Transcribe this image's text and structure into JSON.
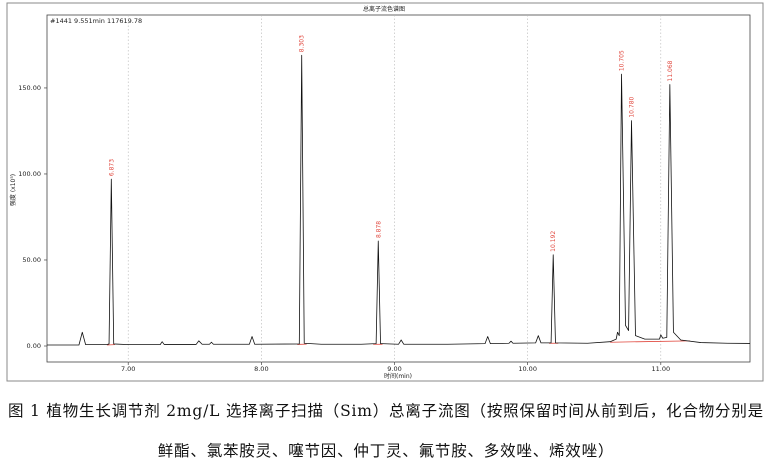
{
  "figure": {
    "title": "总离子流色谱图",
    "info": "#1441 9.551min 117619.78",
    "caption_line1": "图 1 植物生长调节剂 2mg/L 选择离子扫描（Sim）总离子流图（按照保留时间从前到后，化合物分别是胺",
    "caption_line2": "鲜酯、氯苯胺灵、噻节因、仲丁灵、氟节胺、多效唑、烯效唑）"
  },
  "chart_data": {
    "type": "line",
    "title": "总离子流色谱图",
    "xlabel": "时间(min)",
    "ylabel": "强度 (x10⁵)",
    "xlim": [
      6.39,
      11.67
    ],
    "ylim": [
      -9.3,
      192.4
    ],
    "grid": "x",
    "legend": "none",
    "colors": {
      "trace": "#111111",
      "labels": "#e0443a",
      "baseline": "#e0443a",
      "grid": "#b5b5b5"
    },
    "x_ticks": [
      {
        "value": 7,
        "label": "7.00"
      },
      {
        "value": 8,
        "label": "8.00"
      },
      {
        "value": 9,
        "label": "9.00"
      },
      {
        "value": 10,
        "label": "10.00"
      },
      {
        "value": 11,
        "label": "11.00"
      }
    ],
    "y_ticks": [
      {
        "value": 0,
        "label": "0.00"
      },
      {
        "value": 50,
        "label": "50.00"
      },
      {
        "value": 100,
        "label": "100.00"
      },
      {
        "value": 150,
        "label": "150.00"
      }
    ],
    "series": [
      {
        "x": [
          6.39,
          6.63,
          6.655,
          6.68,
          6.84,
          6.856,
          6.873,
          6.891,
          7.0,
          7.24,
          7.255,
          7.27,
          7.51,
          7.53,
          7.555,
          7.61,
          7.625,
          7.64,
          7.91,
          7.93,
          7.95,
          8.285,
          8.303,
          8.322,
          8.45,
          8.75,
          8.862,
          8.878,
          8.895,
          9.03,
          9.05,
          9.07,
          9.4,
          9.68,
          9.7,
          9.72,
          9.86,
          9.875,
          9.89,
          10.06,
          10.08,
          10.1,
          10.176,
          10.192,
          10.209,
          10.45,
          10.62,
          10.665,
          10.675,
          10.688,
          10.705,
          10.735,
          10.758,
          10.78,
          10.81,
          10.88,
          10.99,
          11.0,
          11.015,
          11.045,
          11.068,
          11.095,
          11.15,
          11.3,
          11.5,
          11.67
        ],
        "y": [
          0.6,
          0.6,
          8,
          0.8,
          0.8,
          1.2,
          97,
          1.2,
          0.8,
          0.8,
          2.5,
          0.9,
          0.9,
          3,
          1,
          1,
          2.2,
          1,
          1,
          5.5,
          1,
          1.2,
          169,
          1.6,
          1,
          1,
          1.4,
          61,
          1.4,
          1,
          3.5,
          1,
          1,
          1.4,
          5.5,
          1.4,
          1.6,
          2.8,
          1.6,
          1.8,
          6,
          1.8,
          1.8,
          53,
          1.8,
          1.6,
          2.5,
          4,
          8,
          6,
          158,
          12,
          9,
          131,
          6,
          4,
          4,
          6.5,
          4.5,
          5,
          152,
          8,
          3.5,
          2,
          1.6,
          1.5
        ]
      }
    ],
    "peaks": [
      {
        "x": 6.873,
        "y": 97,
        "label": "6.873"
      },
      {
        "x": 8.303,
        "y": 169,
        "label": "8.303"
      },
      {
        "x": 8.878,
        "y": 61,
        "label": "8.878"
      },
      {
        "x": 10.192,
        "y": 53,
        "label": "10.192"
      },
      {
        "x": 10.705,
        "y": 158,
        "label": "10.705"
      },
      {
        "x": 10.78,
        "y": 131,
        "label": "10.780"
      },
      {
        "x": 11.068,
        "y": 152,
        "label": "11.068"
      }
    ],
    "integration_baselines": [
      {
        "x": [
          6.84,
          6.9
        ],
        "y": [
          0.6,
          0.8
        ]
      },
      {
        "x": [
          8.27,
          8.34
        ],
        "y": [
          0.9,
          1.1
        ]
      },
      {
        "x": [
          8.84,
          8.91
        ],
        "y": [
          1.0,
          1.0
        ]
      },
      {
        "x": [
          10.16,
          10.23
        ],
        "y": [
          1.6,
          1.6
        ]
      },
      {
        "x": [
          10.62,
          11.22
        ],
        "y": [
          2.2,
          3.0
        ]
      }
    ]
  }
}
